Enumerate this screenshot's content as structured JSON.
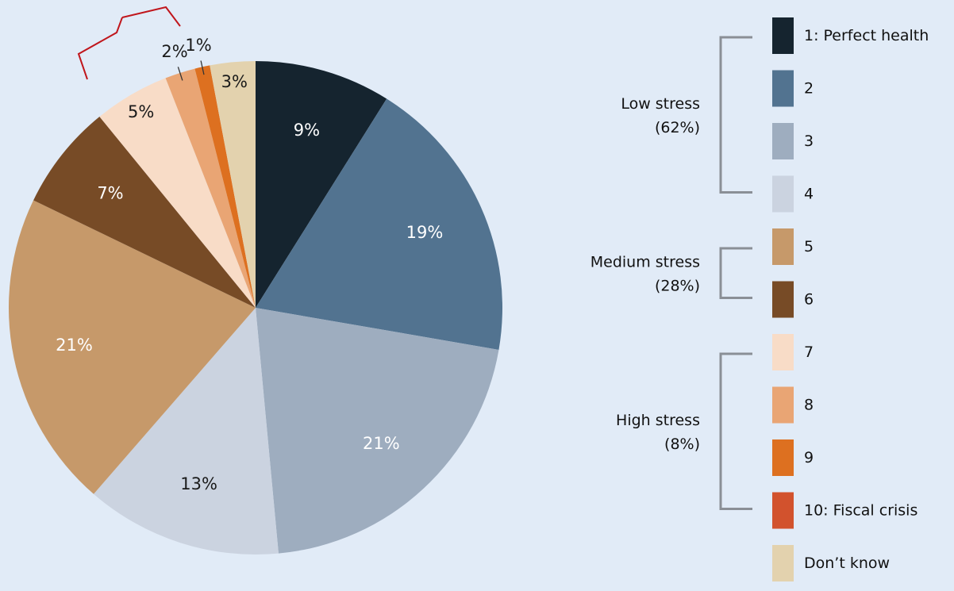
{
  "chart_data": {
    "type": "pie",
    "slices": [
      {
        "name": "1: Perfect health",
        "value": 9,
        "label": "9%",
        "color": "#15242f"
      },
      {
        "name": "2",
        "value": 19,
        "label": "19%",
        "color": "#527390"
      },
      {
        "name": "3",
        "value": 21,
        "label": "21%",
        "color": "#9eadbf"
      },
      {
        "name": "4",
        "value": 13,
        "label": "13%",
        "color": "#cbd3e0"
      },
      {
        "name": "5",
        "value": 21,
        "label": "21%",
        "color": "#c6996a"
      },
      {
        "name": "6",
        "value": 7,
        "label": "7%",
        "color": "#774b26"
      },
      {
        "name": "7",
        "value": 5,
        "label": "5%",
        "color": "#f8dcc7"
      },
      {
        "name": "8",
        "value": 2,
        "label": "2%",
        "color": "#e9a574"
      },
      {
        "name": "9",
        "value": 1,
        "label": "1%",
        "color": "#dd7020"
      },
      {
        "name": "10: Fiscal crisis",
        "value": 0,
        "label": "",
        "color": "#d2522d"
      },
      {
        "name": "Don’t know",
        "value": 3,
        "label": "3%",
        "color": "#e3d2ae"
      }
    ],
    "groups": [
      {
        "name": "Low stress",
        "share": "(62%)",
        "members": [
          "1: Perfect health",
          "2",
          "3",
          "4"
        ]
      },
      {
        "name": "Medium stress",
        "share": "(28%)",
        "members": [
          "5",
          "6"
        ]
      },
      {
        "name": "High stress",
        "share": "(8%)",
        "members": [
          "7",
          "8",
          "9",
          "10: Fiscal crisis"
        ]
      }
    ],
    "legend_position": "right",
    "title": ""
  }
}
